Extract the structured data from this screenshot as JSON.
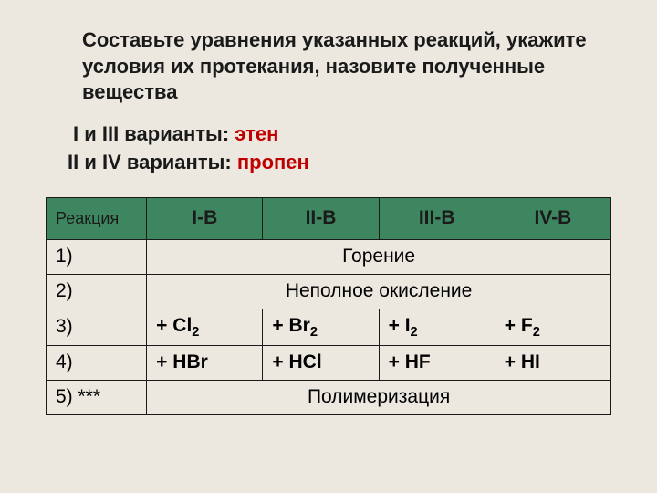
{
  "title": "Составьте уравнения указанных реакций, укажите условия их протекания, назовите полученные вещества",
  "variants": {
    "line1_prefix": " I и III варианты: ",
    "line1_red": "этен",
    "line2_prefix": "II и IV варианты: ",
    "line2_red": "пропен"
  },
  "table": {
    "header_bg": "#3d8660",
    "border_color": "#1a1a1a",
    "columns": [
      "Реакция",
      "I-В",
      "II-В",
      "III-В",
      "IV-В"
    ],
    "rows": [
      {
        "label": "1)",
        "span": "Горение"
      },
      {
        "label": "2)",
        "span": "Неполное окисление"
      },
      {
        "label": "3)",
        "cells": [
          {
            "prefix": "+ ",
            "base": "Cl",
            "sub": "2"
          },
          {
            "prefix": "+ ",
            "base": "Br",
            "sub": "2"
          },
          {
            "prefix": "+ ",
            "base": "I",
            "sub": "2"
          },
          {
            "prefix": "+ ",
            "base": "F",
            "sub": "2"
          }
        ]
      },
      {
        "label": "4)",
        "cells": [
          {
            "prefix": "+ ",
            "base": "HBr",
            "sub": ""
          },
          {
            "prefix": "+ ",
            "base": "HCl",
            "sub": ""
          },
          {
            "prefix": "+ ",
            "base": "HF",
            "sub": ""
          },
          {
            "prefix": "+ ",
            "base": "HI",
            "sub": ""
          }
        ]
      },
      {
        "label": "5) ***",
        "span": "Полимеризация"
      }
    ]
  },
  "style": {
    "background_color": "#ece8e0",
    "title_fontsize": 22,
    "red_color": "#c00000",
    "text_color": "#1a1a1a"
  }
}
